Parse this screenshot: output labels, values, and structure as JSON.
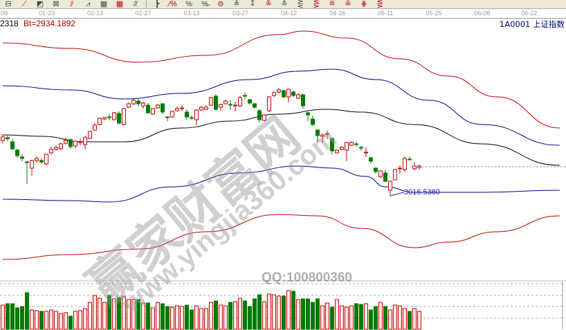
{
  "toolbar": {
    "icons": [
      "bars-icon",
      "fan-line-red-icon",
      "fan-fill-icon",
      "triangle-grid-icon",
      "parallel-lines-icon",
      "wave-icon",
      "grid-table-icon",
      "grid-table-2-icon",
      "channel-icon",
      "price-scale-icon",
      "percent-line-icon",
      "percent-icon",
      "percent-fill-icon",
      "circle-coin-icon",
      "gold-line-icon",
      "marker-icon",
      "fib-icon",
      "gold-bar-icon",
      "fan-lines-icon",
      "fan-lines-2-icon",
      "gold-lines-icon",
      "red-lines-icon",
      "cross-lines-icon",
      "tri-lines-icon"
    ],
    "glyphs": [
      "⊟",
      "⟋",
      "◩",
      "⊠",
      "⫽",
      "⩘",
      "▦",
      "▦",
      "⫻",
      "┣",
      "∕%",
      "%",
      "%̶",
      "⊜",
      "≜",
      "⁑",
      "≚",
      "≛",
      "⋛",
      "⋚",
      "≝",
      "≞",
      "⋕",
      "⋚"
    ]
  },
  "info": {
    "left_code": "2318",
    "bt_label": "Bt=2934.1892",
    "symbol": "1A0001 上证指数"
  },
  "watermark": {
    "main": "赢家财富网",
    "url": "www.yingjia360.com",
    "qq": "QQ:100800360"
  },
  "colors": {
    "up": "#c00000",
    "down": "#007a00",
    "up_fill": "#ffffff",
    "ma": "#000000",
    "inner_band": "#00008b",
    "outer_band": "#c00000",
    "label": "#2020a0"
  },
  "chart_data": {
    "type": "candlestick",
    "title": "",
    "xlabel": "",
    "ylabel": "",
    "ylim": [
      2783,
      3493
    ],
    "xlim": [
      -0.57,
      116.3
    ],
    "grid": false,
    "x_ticks": [
      {
        "bar": 0,
        "label": "09"
      },
      {
        "bar": 9.1,
        "label": "01-23"
      },
      {
        "bar": 19.1,
        "label": "02-13"
      },
      {
        "bar": 29,
        "label": "02-27"
      },
      {
        "bar": 39,
        "label": "03-13"
      },
      {
        "bar": 49.1,
        "label": "03-27"
      },
      {
        "bar": 59.1,
        "label": "04-12"
      },
      {
        "bar": 69.1,
        "label": "04-26"
      },
      {
        "bar": 79,
        "label": "05-11"
      },
      {
        "bar": 89,
        "label": "05-25"
      },
      {
        "bar": 99,
        "label": "06-08"
      },
      {
        "bar": 108.7,
        "label": "06-22"
      }
    ],
    "ohlc": [
      [
        3177,
        3195,
        3169,
        3187
      ],
      [
        3185,
        3191,
        3175,
        3182
      ],
      [
        3173,
        3181,
        3149,
        3153
      ],
      [
        3149,
        3153,
        3127,
        3133
      ],
      [
        3129,
        3137,
        3117,
        3125
      ],
      [
        3115,
        3117,
        3051,
        3113
      ],
      [
        3097,
        3121,
        3075,
        3119
      ],
      [
        3119,
        3131,
        3113,
        3125
      ],
      [
        3119,
        3125,
        3109,
        3115
      ],
      [
        3109,
        3139,
        3105,
        3137
      ],
      [
        3141,
        3159,
        3137,
        3151
      ],
      [
        3151,
        3163,
        3147,
        3157
      ],
      [
        3153,
        3171,
        3149,
        3167
      ],
      [
        3169,
        3185,
        3165,
        3177
      ],
      [
        3179,
        3183,
        3153,
        3159
      ],
      [
        3161,
        3177,
        3153,
        3175
      ],
      [
        3173,
        3183,
        3163,
        3173
      ],
      [
        3165,
        3191,
        3151,
        3185
      ],
      [
        3183,
        3205,
        3181,
        3203
      ],
      [
        3207,
        3227,
        3205,
        3221
      ],
      [
        3223,
        3243,
        3221,
        3241
      ],
      [
        3239,
        3245,
        3237,
        3243
      ],
      [
        3245,
        3253,
        3235,
        3243
      ],
      [
        3237,
        3259,
        3235,
        3257
      ],
      [
        3255,
        3261,
        3223,
        3227
      ],
      [
        3223,
        3271,
        3221,
        3269
      ],
      [
        3273,
        3287,
        3271,
        3283
      ],
      [
        3283,
        3297,
        3279,
        3293
      ],
      [
        3291,
        3297,
        3275,
        3283
      ],
      [
        3277,
        3289,
        3269,
        3285
      ],
      [
        3279,
        3285,
        3253,
        3257
      ],
      [
        3253,
        3271,
        3251,
        3269
      ],
      [
        3271,
        3283,
        3269,
        3279
      ],
      [
        3283,
        3285,
        3253,
        3259
      ],
      [
        3245,
        3247,
        3233,
        3243
      ],
      [
        3245,
        3263,
        3243,
        3261
      ],
      [
        3263,
        3275,
        3261,
        3269
      ],
      [
        3269,
        3279,
        3263,
        3271
      ],
      [
        3259,
        3267,
        3237,
        3245
      ],
      [
        3243,
        3249,
        3237,
        3241
      ],
      [
        3237,
        3267,
        3221,
        3265
      ],
      [
        3265,
        3277,
        3263,
        3273
      ],
      [
        3267,
        3279,
        3265,
        3273
      ],
      [
        3279,
        3303,
        3277,
        3301
      ],
      [
        3305,
        3311,
        3263,
        3267
      ],
      [
        3273,
        3283,
        3263,
        3281
      ],
      [
        3283,
        3295,
        3281,
        3291
      ],
      [
        3281,
        3293,
        3265,
        3279
      ],
      [
        3277,
        3289,
        3261,
        3279
      ],
      [
        3277,
        3305,
        3273,
        3301
      ],
      [
        3307,
        3315,
        3297,
        3305
      ],
      [
        3295,
        3297,
        3281,
        3285
      ],
      [
        3283,
        3285,
        3269,
        3273
      ],
      [
        3263,
        3267,
        3229,
        3237
      ],
      [
        3235,
        3253,
        3233,
        3251
      ],
      [
        3263,
        3305,
        3259,
        3303
      ],
      [
        3307,
        3319,
        3303,
        3315
      ],
      [
        3317,
        3329,
        3313,
        3323
      ],
      [
        3321,
        3323,
        3299,
        3303
      ],
      [
        3303,
        3327,
        3287,
        3325
      ],
      [
        3317,
        3321,
        3303,
        3307
      ],
      [
        3299,
        3313,
        3297,
        3309
      ],
      [
        3309,
        3311,
        3269,
        3277
      ],
      [
        3257,
        3259,
        3233,
        3251
      ],
      [
        3239,
        3249,
        3219,
        3223
      ],
      [
        3207,
        3209,
        3171,
        3191
      ],
      [
        3189,
        3197,
        3171,
        3193
      ],
      [
        3195,
        3205,
        3181,
        3197
      ],
      [
        3183,
        3185,
        3137,
        3147
      ],
      [
        3141,
        3151,
        3139,
        3149
      ],
      [
        3151,
        3161,
        3149,
        3157
      ],
      [
        3149,
        3173,
        3117,
        3171
      ],
      [
        3163,
        3175,
        3161,
        3171
      ],
      [
        3167,
        3173,
        3159,
        3165
      ],
      [
        3157,
        3161,
        3147,
        3155
      ],
      [
        3141,
        3157,
        3129,
        3143
      ],
      [
        3127,
        3129,
        3111,
        3117
      ],
      [
        3097,
        3099,
        3081,
        3087
      ],
      [
        3073,
        3091,
        3067,
        3089
      ],
      [
        3083,
        3093,
        3057,
        3059
      ],
      [
        3033,
        3061,
        3017,
        3059
      ],
      [
        3063,
        3095,
        3063,
        3093
      ],
      [
        3095,
        3105,
        3081,
        3097
      ],
      [
        3093,
        3131,
        3087,
        3125
      ],
      [
        3123,
        3131,
        3119,
        3121
      ],
      [
        3095,
        3115,
        3091,
        3103
      ],
      [
        3099,
        3107,
        3093,
        3103
      ]
    ],
    "last_price_line": 3101,
    "low_annotation": {
      "bar": 80,
      "value": 3016.538,
      "label": "3016.5380"
    },
    "lines": [
      {
        "role": "middle",
        "points": [
          [
            0,
            3193
          ],
          [
            8,
            3189
          ],
          [
            17,
            3173
          ],
          [
            25,
            3173
          ],
          [
            37,
            3213
          ],
          [
            47,
            3233
          ],
          [
            57,
            3253
          ],
          [
            67,
            3267
          ],
          [
            74,
            3259
          ],
          [
            85,
            3223
          ],
          [
            99,
            3167
          ],
          [
            115,
            3105
          ]
        ]
      },
      {
        "role": "inner-upper",
        "points": [
          [
            0,
            3335
          ],
          [
            14,
            3323
          ],
          [
            25,
            3297
          ],
          [
            37,
            3313
          ],
          [
            51,
            3353
          ],
          [
            61,
            3377
          ],
          [
            68,
            3383
          ],
          [
            77,
            3353
          ],
          [
            88,
            3293
          ],
          [
            99,
            3223
          ],
          [
            115,
            3163
          ]
        ]
      },
      {
        "role": "inner-lower",
        "points": [
          [
            0,
            3007
          ],
          [
            14,
            3003
          ],
          [
            22,
            2999
          ],
          [
            35,
            3043
          ],
          [
            49,
            3083
          ],
          [
            61,
            3103
          ],
          [
            68,
            3097
          ],
          [
            75,
            3073
          ],
          [
            79,
            3043
          ],
          [
            85,
            3027
          ],
          [
            99,
            3027
          ],
          [
            115,
            3033
          ]
        ]
      },
      {
        "role": "outer-upper",
        "points": [
          [
            0,
            3459
          ],
          [
            14,
            3443
          ],
          [
            28,
            3403
          ],
          [
            42,
            3423
          ],
          [
            57,
            3483
          ],
          [
            62,
            3493
          ],
          [
            71,
            3473
          ],
          [
            82,
            3413
          ],
          [
            92,
            3363
          ],
          [
            102,
            3303
          ],
          [
            115,
            3213
          ]
        ]
      },
      {
        "role": "outer-lower",
        "points": [
          [
            0,
            2833
          ],
          [
            14,
            2847
          ],
          [
            28,
            2863
          ],
          [
            42,
            2913
          ],
          [
            57,
            2963
          ],
          [
            65,
            2959
          ],
          [
            74,
            2923
          ],
          [
            85,
            2867
          ],
          [
            92,
            2883
          ],
          [
            102,
            2913
          ],
          [
            115,
            2959
          ]
        ]
      }
    ],
    "volume": {
      "ylim": [
        0,
        70
      ],
      "gridlines": [
        16,
        33,
        49,
        66
      ],
      "values": [
        35,
        37,
        37,
        31,
        33,
        53,
        28,
        27,
        26,
        26,
        28,
        26,
        23,
        24,
        19,
        26,
        27,
        30,
        39,
        49,
        45,
        39,
        49,
        44,
        46,
        47,
        43,
        43,
        43,
        38,
        38,
        31,
        39,
        37,
        33,
        32,
        34,
        33,
        35,
        28,
        34,
        30,
        30,
        39,
        41,
        35,
        34,
        39,
        40,
        45,
        41,
        33,
        44,
        50,
        40,
        51,
        50,
        48,
        48,
        56,
        55,
        43,
        44,
        44,
        39,
        44,
        34,
        38,
        32,
        43,
        34,
        32,
        34,
        37,
        36,
        37,
        28,
        33,
        39,
        33,
        28,
        35,
        34,
        30,
        26,
        30,
        26
      ]
    }
  }
}
